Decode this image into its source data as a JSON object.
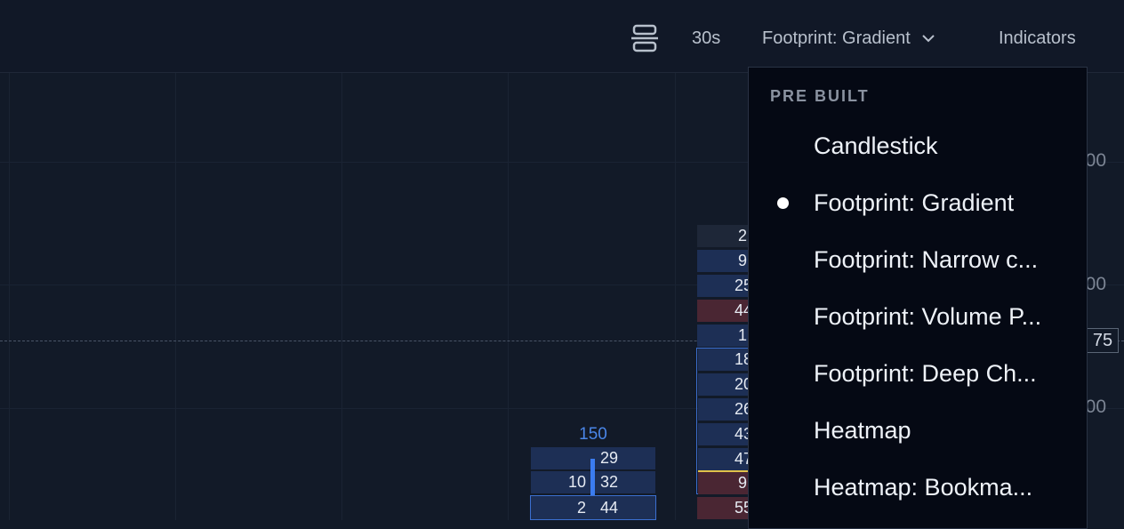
{
  "toolbar": {
    "layout_icon": "align-center-icon",
    "timeframe": "30s",
    "chart_type": "Footprint: Gradient",
    "indicators": "Indicators"
  },
  "axis": {
    "labels": [
      "00",
      "00",
      "00"
    ],
    "current_price": "75"
  },
  "footprint": {
    "left_candle": {
      "total": "150",
      "rows": [
        {
          "bid": "",
          "ask": "29"
        },
        {
          "bid": "10",
          "ask": "32"
        },
        {
          "bid": "2",
          "ask": "44"
        }
      ]
    },
    "right_candle_visible": [
      "2",
      "9",
      "25",
      "44",
      "1",
      "18",
      "20",
      "26",
      "43",
      "47",
      "9",
      "55"
    ]
  },
  "dropdown": {
    "section_title": "PRE BUILT",
    "items": [
      {
        "label": "Candlestick",
        "selected": false
      },
      {
        "label": "Footprint: Gradient",
        "selected": true
      },
      {
        "label": "Footprint: Narrow c...",
        "selected": false
      },
      {
        "label": "Footprint: Volume P...",
        "selected": false
      },
      {
        "label": "Footprint: Deep Ch...",
        "selected": false
      },
      {
        "label": "Heatmap",
        "selected": false
      },
      {
        "label": "Heatmap: Bookma...",
        "selected": false
      }
    ]
  },
  "colors": {
    "background": "#121a28",
    "cell_blue": "#1d2f55",
    "cell_red": "#4a2633",
    "highlight_border": "#3b6fd0",
    "volume_label": "#4a86e8",
    "poc_marker": "#e0c24a"
  }
}
